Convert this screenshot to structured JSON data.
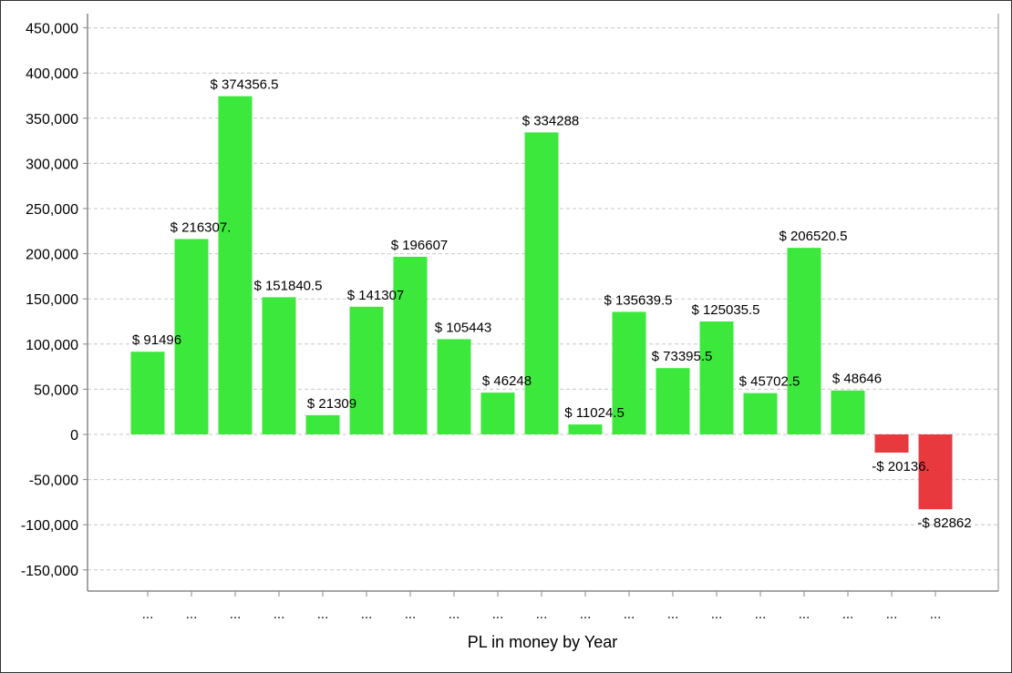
{
  "chart_data": {
    "type": "bar",
    "title": "",
    "xlabel": "PL in money by Year",
    "ylabel": "",
    "ylim": [
      -170000,
      460000
    ],
    "yticks": [
      450000,
      400000,
      350000,
      300000,
      250000,
      200000,
      150000,
      100000,
      50000,
      0,
      -50000,
      -100000,
      -150000
    ],
    "ytick_labels": [
      "450,000",
      "400,000",
      "350,000",
      "300,000",
      "250,000",
      "200,000",
      "150,000",
      "100,000",
      "50,000",
      "0",
      "-50,000",
      "-100,000",
      "-150,000"
    ],
    "grid": true,
    "legend": false,
    "categories": [
      "...",
      "...",
      "...",
      "...",
      "...",
      "...",
      "...",
      "...",
      "...",
      "...",
      "...",
      "...",
      "...",
      "...",
      "...",
      "...",
      "...",
      "...",
      "..."
    ],
    "values": [
      91496,
      216307,
      374356.5,
      151840.5,
      21309,
      141307,
      196607,
      105443,
      46248,
      334288,
      11024.5,
      135639.5,
      73395.5,
      125035.5,
      45702.5,
      206520.5,
      48646,
      -20136,
      -82862
    ],
    "data_labels": [
      "$ 91496",
      "$ 216307.",
      "$ 374356.5",
      "$ 151840.5",
      "$ 21309",
      "$ 141307",
      "$ 196607",
      "$ 105443",
      "$ 46248",
      "$ 334288",
      "$ 11024.5",
      "$ 135639.5",
      "$ 73395.5",
      "$ 125035.5",
      "$ 45702.5",
      "$ 206520.5",
      "$ 48646",
      "-$ 20136.",
      "-$ 82862"
    ],
    "colors": {
      "positive": "#3de83d",
      "negative": "#e8393f",
      "grid": "#c8c8c8",
      "axis": "#888888"
    }
  }
}
